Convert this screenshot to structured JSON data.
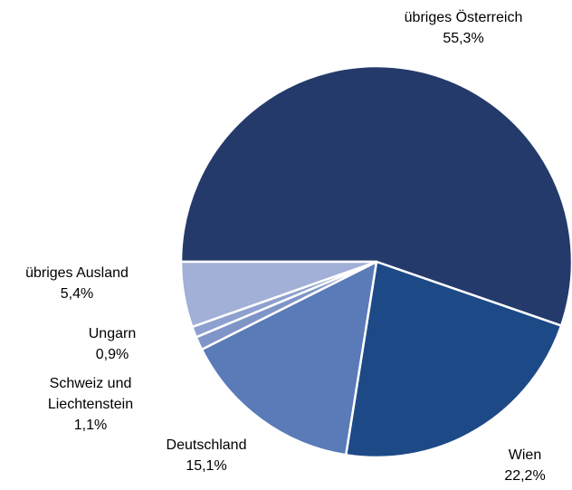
{
  "chart_data": {
    "type": "pie",
    "categories": [
      "übriges Österreich",
      "Wien",
      "Deutschland",
      "Schweiz und Liechtenstein",
      "Ungarn",
      "übriges Ausland"
    ],
    "values": [
      55.3,
      22.2,
      15.1,
      1.1,
      0.9,
      5.4
    ],
    "value_labels": [
      "55,3%",
      "22,2%",
      "15,1%",
      "1,1%",
      "0,9%",
      "5,4%"
    ],
    "colors": [
      "#243a6b",
      "#1d4a87",
      "#5b7ab8",
      "#7f95c8",
      "#8ea0cf",
      "#a2afd6"
    ]
  }
}
